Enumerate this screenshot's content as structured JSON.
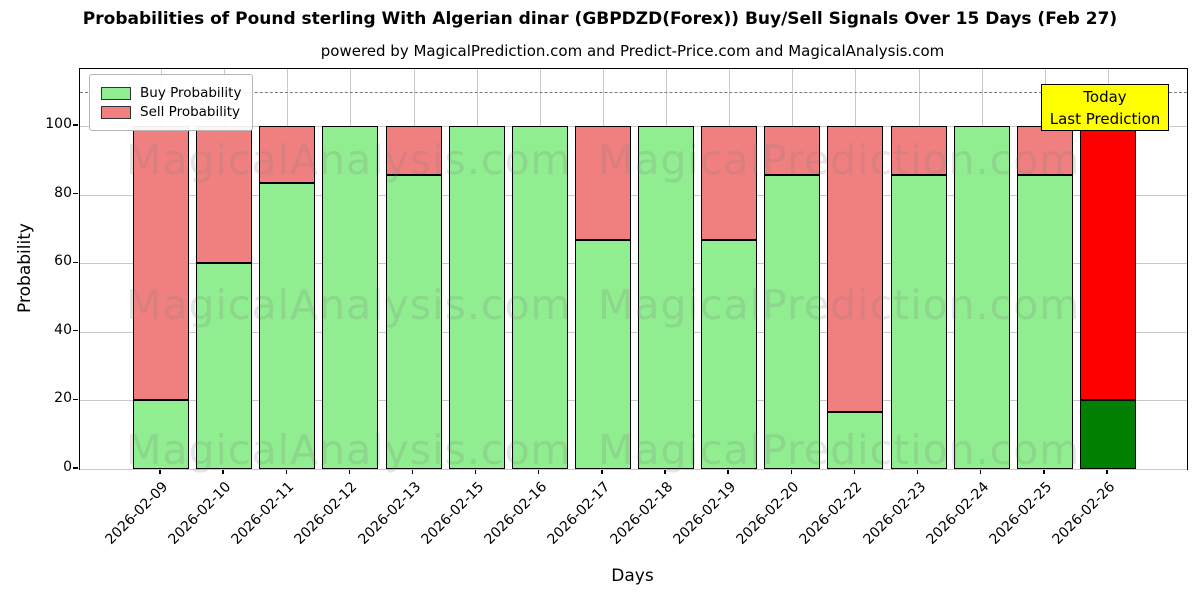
{
  "chart_data": {
    "type": "bar",
    "stacked": true,
    "title": "Probabilities of Pound sterling With Algerian dinar (GBPDZD(Forex)) Buy/Sell Signals Over 15 Days (Feb 27)",
    "subtitle": "powered by MagicalPrediction.com and Predict-Price.com and MagicalAnalysis.com",
    "xlabel": "Days",
    "ylabel": "Probability",
    "ylim": [
      0,
      116.6
    ],
    "y_ticks": [
      0,
      20,
      40,
      60,
      80,
      100
    ],
    "grid": true,
    "threshold_dashed_line_y": 110,
    "categories": [
      "2026-02-09",
      "2026-02-10",
      "2026-02-11",
      "2026-02-12",
      "2026-02-13",
      "2026-02-15",
      "2026-02-16",
      "2026-02-17",
      "2026-02-18",
      "2026-02-19",
      "2026-02-20",
      "2026-02-22",
      "2026-02-23",
      "2026-02-24",
      "2026-02-25",
      "2026-02-26"
    ],
    "series": [
      {
        "name": "Buy Probability",
        "values": [
          20,
          60,
          83.33,
          100,
          85.71,
          100,
          100,
          66.67,
          100,
          66.67,
          85.71,
          16.67,
          85.71,
          100,
          85.71,
          20
        ]
      },
      {
        "name": "Sell Probability",
        "values": [
          80,
          40,
          16.67,
          0,
          14.29,
          0,
          0,
          33.33,
          0,
          33.33,
          14.29,
          83.33,
          14.29,
          0,
          14.29,
          80
        ]
      }
    ],
    "today_index": 15,
    "colors": {
      "buy": "#90ee90",
      "sell": "#f08080",
      "today_buy": "#008000",
      "today_sell": "#ff0000",
      "bar_edge": "#000000",
      "grid": "#c9c9c9",
      "annotation_bg": "#ffff00"
    },
    "legend": {
      "position": "upper left",
      "entries": [
        "Buy Probability",
        "Sell Probability"
      ]
    },
    "annotation": {
      "line1": "Today",
      "line2": "Last Prediction",
      "bg": "#ffff00"
    },
    "watermarks": {
      "left": "MagicalAnalysis.com",
      "right": "MagicalPrediction.com"
    }
  }
}
